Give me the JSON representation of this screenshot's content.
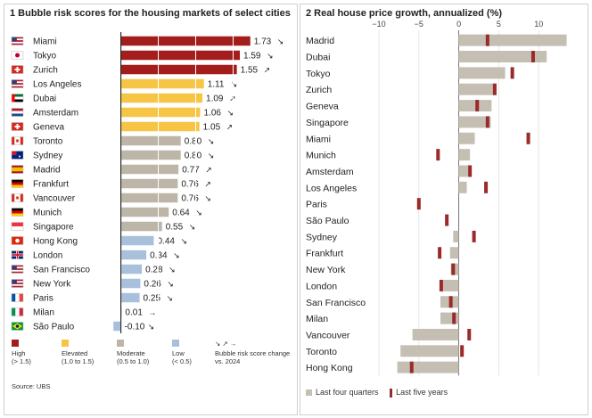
{
  "colors": {
    "high": "#a31d1d",
    "elevated": "#f7c546",
    "moderate": "#bcb5a8",
    "low": "#a9c0dc",
    "four_q": "#c5bfb3",
    "five_y": "#9b2a2a"
  },
  "chart_data": [
    {
      "type": "bar",
      "title": "1 Bubble risk scores for the housing markets of select cities",
      "categories": [
        "Miami",
        "Tokyo",
        "Zurich",
        "Los Angeles",
        "Dubai",
        "Amsterdam",
        "Geneva",
        "Toronto",
        "Sydney",
        "Madrid",
        "Frankfurt",
        "Vancouver",
        "Munich",
        "Singapore",
        "Hong Kong",
        "London",
        "San Francisco",
        "New York",
        "Paris",
        "Milan",
        "São Paulo"
      ],
      "values": [
        1.73,
        1.59,
        1.55,
        1.11,
        1.09,
        1.06,
        1.05,
        0.8,
        0.8,
        0.77,
        0.76,
        0.76,
        0.64,
        0.55,
        0.44,
        0.34,
        0.28,
        0.26,
        0.25,
        0.01,
        -0.1
      ],
      "value_labels": [
        "1.73",
        "1.59",
        "1.55",
        "1.11",
        "1.09",
        "1.06",
        "1.05",
        "0.80",
        "0.80",
        "0.77",
        "0.76",
        "0.76",
        "0.64",
        "0.55",
        "0.44",
        "0.34",
        "0.28",
        "0.26",
        "0.25",
        "0.01",
        "-0.10"
      ],
      "change_arrows": [
        "↘",
        "↘",
        "↗",
        "↘",
        "↗",
        "↘",
        "↗",
        "↘",
        "↘",
        "↗",
        "↗",
        "↘",
        "↘",
        "↘",
        "↘",
        "↘",
        "↘",
        "↘",
        "↘",
        "→",
        "↘"
      ],
      "categories_risk": [
        "high",
        "high",
        "high",
        "elevated",
        "elevated",
        "elevated",
        "elevated",
        "moderate",
        "moderate",
        "moderate",
        "moderate",
        "moderate",
        "moderate",
        "moderate",
        "low",
        "low",
        "low",
        "low",
        "low",
        "low",
        "low"
      ],
      "flags": [
        "us",
        "jp",
        "ch",
        "us",
        "ae",
        "nl",
        "ch",
        "ca",
        "au",
        "es",
        "de",
        "ca",
        "de",
        "sg",
        "hk",
        "gb",
        "us",
        "us",
        "fr",
        "it",
        "br"
      ],
      "xlim": [
        -0.15,
        1.9
      ],
      "legend": [
        {
          "key": "high",
          "label": "High",
          "range": "(> 1.5)"
        },
        {
          "key": "elevated",
          "label": "Elevated",
          "range": "(1.0 to 1.5)"
        },
        {
          "key": "moderate",
          "label": "Moderate",
          "range": "(0.5 to 1.0)"
        },
        {
          "key": "low",
          "label": "Low",
          "range": "(< 0.5)"
        },
        {
          "key": "arrows",
          "label": "↘ ↗ →",
          "range": "Bubble risk score change vs. 2024"
        }
      ],
      "source": "Source: UBS"
    },
    {
      "type": "bar",
      "title": "2 Real house price growth, annualized (%)",
      "categories": [
        "Madrid",
        "Dubai",
        "Tokyo",
        "Zurich",
        "Geneva",
        "Singapore",
        "Miami",
        "Munich",
        "Amsterdam",
        "Los Angeles",
        "Paris",
        "São Paulo",
        "Sydney",
        "Frankfurt",
        "New York",
        "London",
        "San Francisco",
        "Milan",
        "Vancouver",
        "Toronto",
        "Hong Kong"
      ],
      "series": [
        {
          "name": "Last four quarters",
          "values": [
            13.5,
            11,
            5.8,
            4.6,
            4.1,
            4.0,
            2.0,
            1.4,
            1.6,
            1.0,
            0.0,
            0.0,
            -0.7,
            -1.1,
            -1.0,
            -2.3,
            -2.3,
            -2.3,
            -5.8,
            -7.3,
            -7.7
          ]
        },
        {
          "name": "Last five years",
          "values": [
            3.6,
            9.3,
            6.7,
            4.5,
            2.3,
            3.6,
            8.7,
            -2.6,
            1.4,
            3.4,
            -5.0,
            -1.5,
            1.9,
            -2.4,
            -0.7,
            -2.2,
            -1.0,
            -0.6,
            1.3,
            0.4,
            -5.9
          ]
        }
      ],
      "xlim": [
        -10,
        15
      ],
      "xticks": [
        -10,
        -5,
        0,
        5,
        10
      ],
      "tick_labels": [
        "−10",
        "−5",
        "0",
        "5",
        "10"
      ],
      "legend": [
        "Last four quarters",
        "Last five years"
      ]
    }
  ]
}
